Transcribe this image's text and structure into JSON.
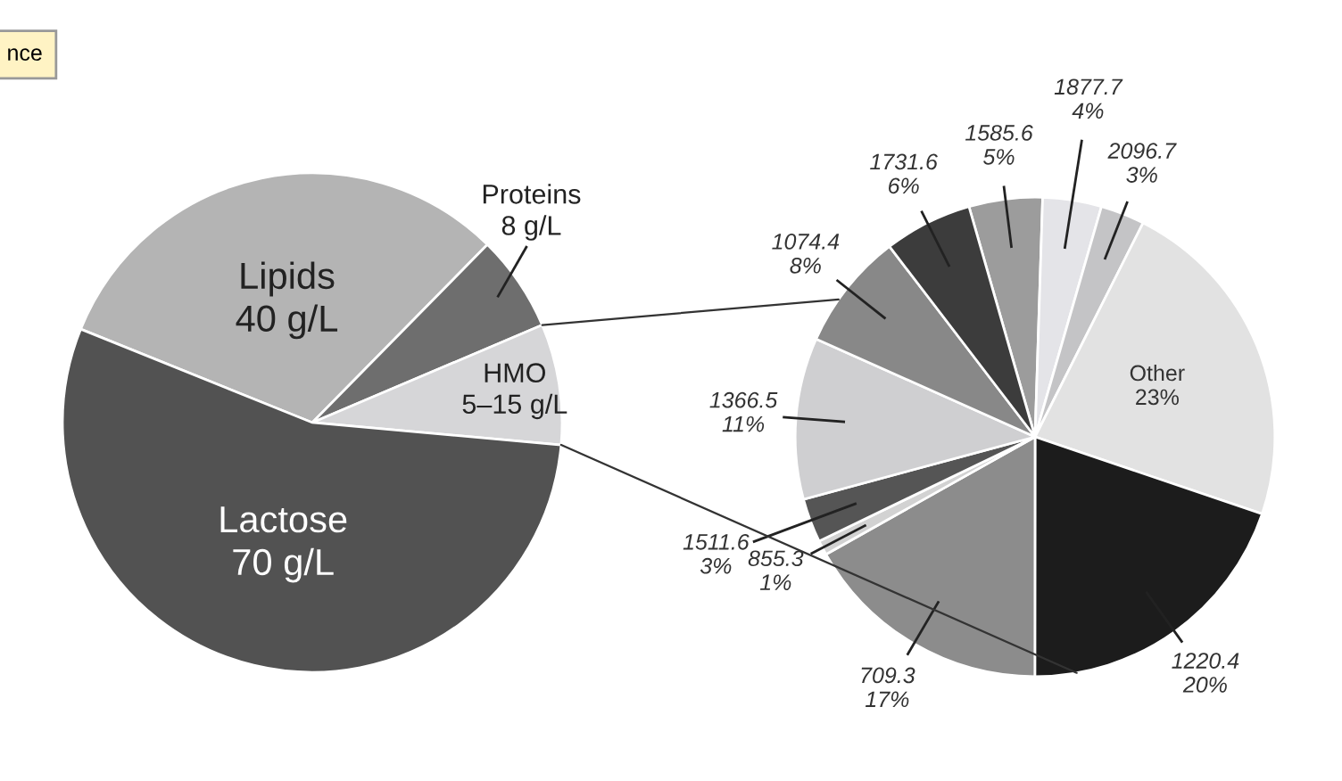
{
  "chart_data": [
    {
      "type": "pie",
      "categories": [
        "Lipids",
        "Proteins",
        "HMO",
        "Lactose"
      ],
      "values": [
        40,
        8,
        10,
        70
      ],
      "value_labels": [
        "40 g/L",
        "8 g/L",
        "5–15 g/L",
        "70 g/L"
      ],
      "colors": [
        "#b4b4b4",
        "#6e6e6e",
        "#d6d6d8",
        "#525252"
      ],
      "annotations": [
        "nce"
      ]
    },
    {
      "type": "pie",
      "categories": [
        "1585.6",
        "1877.7",
        "2096.7",
        "Other",
        "1220.4",
        "709.3",
        "855.3",
        "1511.6",
        "1366.5",
        "1074.4",
        "1731.6"
      ],
      "values": [
        5,
        4,
        3,
        23,
        20,
        17,
        1,
        3,
        11,
        8,
        6
      ],
      "value_labels": [
        "5%",
        "4%",
        "3%",
        "23%",
        "20%",
        "17%",
        "1%",
        "3%",
        "11%",
        "8%",
        "6%"
      ],
      "colors": [
        "#9c9c9c",
        "#e4e4e8",
        "#c4c4c6",
        "#e2e2e2",
        "#1c1c1c",
        "#8c8c8c",
        "#d2d2d2",
        "#555555",
        "#cfcfd1",
        "#888888",
        "#3c3c3c"
      ]
    }
  ]
}
